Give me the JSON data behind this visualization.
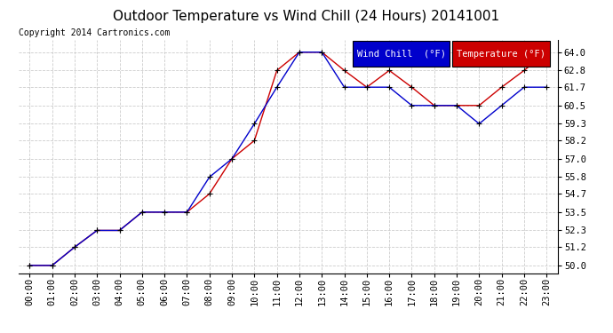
{
  "title": "Outdoor Temperature vs Wind Chill (24 Hours) 20141001",
  "copyright": "Copyright 2014 Cartronics.com",
  "background_color": "#ffffff",
  "grid_color": "#cccccc",
  "x_labels": [
    "00:00",
    "01:00",
    "02:00",
    "03:00",
    "04:00",
    "05:00",
    "06:00",
    "07:00",
    "08:00",
    "09:00",
    "10:00",
    "11:00",
    "12:00",
    "13:00",
    "14:00",
    "15:00",
    "16:00",
    "17:00",
    "18:00",
    "19:00",
    "20:00",
    "21:00",
    "22:00",
    "23:00"
  ],
  "temperature": [
    50.0,
    50.0,
    51.2,
    52.3,
    52.3,
    53.5,
    53.5,
    53.5,
    54.7,
    57.0,
    58.2,
    62.8,
    64.0,
    64.0,
    62.8,
    61.7,
    62.8,
    61.7,
    60.5,
    60.5,
    60.5,
    61.7,
    62.8,
    64.0
  ],
  "wind_chill": [
    50.0,
    50.0,
    51.2,
    52.3,
    52.3,
    53.5,
    53.5,
    53.5,
    55.8,
    57.0,
    59.3,
    61.7,
    64.0,
    64.0,
    61.7,
    61.7,
    61.7,
    60.5,
    60.5,
    60.5,
    59.3,
    60.5,
    61.7,
    61.7
  ],
  "ylim": [
    49.5,
    64.8
  ],
  "yticks": [
    50.0,
    51.2,
    52.3,
    53.5,
    54.7,
    55.8,
    57.0,
    58.2,
    59.3,
    60.5,
    61.7,
    62.8,
    64.0
  ],
  "temp_color": "#cc0000",
  "wind_color": "#0000cc",
  "marker_color": "#000000",
  "legend_wind_bg": "#0000cc",
  "legend_temp_bg": "#cc0000",
  "legend_text_color": "#ffffff",
  "title_fontsize": 11,
  "copyright_fontsize": 7,
  "tick_fontsize": 7.5,
  "legend_fontsize": 7.5
}
